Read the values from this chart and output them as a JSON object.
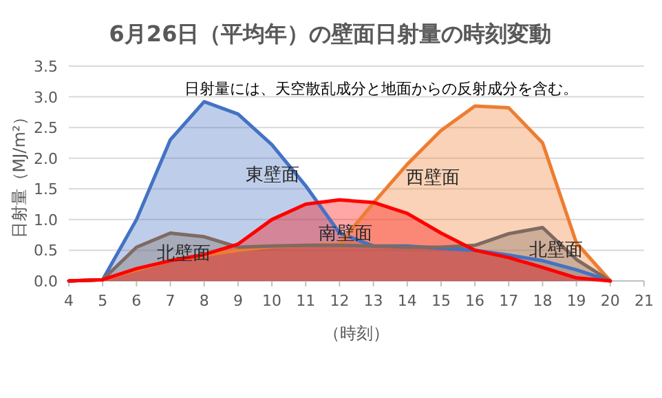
{
  "chart_data": {
    "type": "area",
    "title": "6月26日（平均年）の壁面日射量の時刻変動",
    "xlabel": "（時刻）",
    "ylabel": "日射量（MJ/m²）",
    "annotations": [
      "日射量には、天空散乱成分と地面からの反射成分を含む。"
    ],
    "x": [
      4,
      5,
      6,
      7,
      8,
      9,
      10,
      11,
      12,
      13,
      14,
      15,
      16,
      17,
      18,
      19,
      20
    ],
    "series": [
      {
        "name": "東壁面",
        "color": "#4472c4",
        "values": [
          0,
          0.02,
          1.0,
          2.3,
          2.92,
          2.72,
          2.22,
          1.55,
          0.78,
          0.57,
          0.57,
          0.53,
          0.5,
          0.42,
          0.33,
          0.18,
          0
        ]
      },
      {
        "name": "西壁面",
        "color": "#ed7d31",
        "values": [
          0,
          0.02,
          0.18,
          0.33,
          0.42,
          0.5,
          0.56,
          0.58,
          0.6,
          1.27,
          1.9,
          2.45,
          2.85,
          2.82,
          2.25,
          0.62,
          0
        ]
      },
      {
        "name": "北壁面",
        "color": "#7f6a62",
        "values": [
          0,
          0.02,
          0.55,
          0.78,
          0.72,
          0.55,
          0.57,
          0.58,
          0.58,
          0.57,
          0.55,
          0.55,
          0.58,
          0.77,
          0.87,
          0.35,
          0
        ]
      },
      {
        "name": "南壁面",
        "color": "#ff0000",
        "values": [
          0,
          0.02,
          0.2,
          0.33,
          0.43,
          0.6,
          1.0,
          1.25,
          1.32,
          1.28,
          1.1,
          0.78,
          0.5,
          0.38,
          0.22,
          0.05,
          0
        ]
      }
    ],
    "xlim": [
      4,
      21
    ],
    "xticks": [
      4,
      5,
      6,
      7,
      8,
      9,
      10,
      11,
      12,
      13,
      14,
      15,
      16,
      17,
      18,
      19,
      20,
      21
    ],
    "ylim": [
      0,
      3.5
    ],
    "yticks": [
      {
        "value": 0,
        "label": "0.0"
      },
      {
        "value": 0.5,
        "label": "0.5"
      },
      {
        "value": 1,
        "label": "1.0"
      },
      {
        "value": 1.5,
        "label": "1.5"
      },
      {
        "value": 2,
        "label": "2.0"
      },
      {
        "value": 2.5,
        "label": "2.5"
      },
      {
        "value": 3,
        "label": "3.0"
      },
      {
        "value": 3.5,
        "label": "3.5"
      }
    ],
    "grid": "y",
    "marker": "none",
    "line_style": "solid"
  }
}
